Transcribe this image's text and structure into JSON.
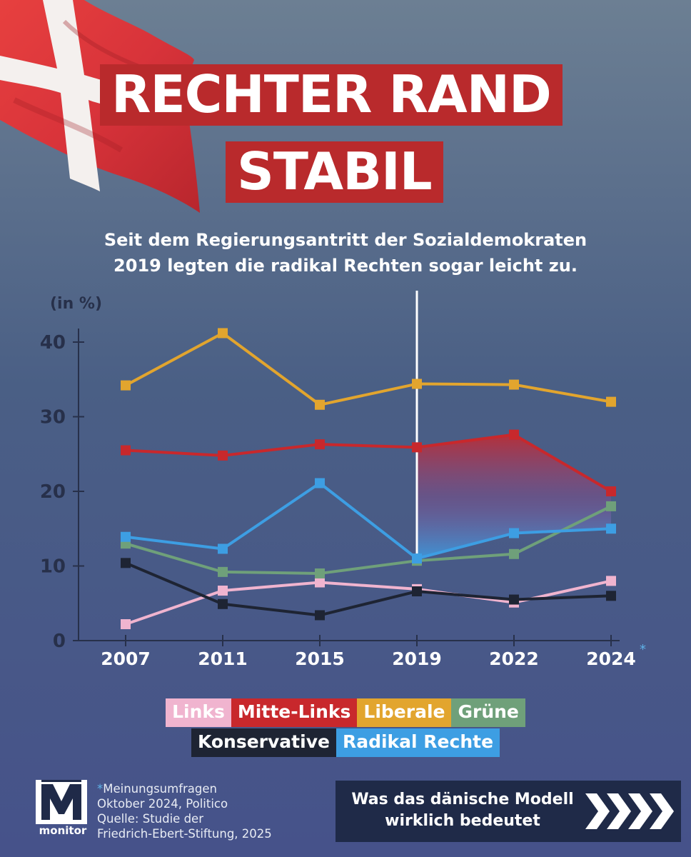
{
  "title": {
    "line1": "RECHTER RAND",
    "line2": "STABIL"
  },
  "subtitle": {
    "line1": "Seit dem Regierungsantritt der Sozialdemokraten",
    "line2": "2019 legten die radikal Rechten sogar leicht zu."
  },
  "colors": {
    "title_bg": "#b92a2c",
    "Links": "#f0b4cf",
    "Mitte-Links": "#c8282c",
    "Liberale": "#e2a52e",
    "Grüne": "#6fa07a",
    "Konservative": "#1e2433",
    "Radikal Rechte": "#3d9ee3"
  },
  "chart_data": {
    "type": "line",
    "ylabel": "(in %)",
    "ylim": [
      0,
      40
    ],
    "yticks": [
      0,
      10,
      20,
      30,
      40
    ],
    "x": [
      "2007",
      "2011",
      "2015",
      "2019",
      "2022",
      "2024"
    ],
    "x_note": "*",
    "marker": "2019",
    "highlight": "Gap between Mitte-Links and Radikal Rechte from 2019 onwards (red-to-blue gradient)",
    "series": [
      {
        "name": "Liberale",
        "values": [
          34.2,
          41.2,
          31.6,
          34.4,
          34.3,
          32.0
        ]
      },
      {
        "name": "Mitte-Links",
        "values": [
          25.5,
          24.8,
          26.3,
          25.9,
          27.6,
          20.0
        ]
      },
      {
        "name": "Radikal Rechte",
        "values": [
          13.9,
          12.3,
          21.1,
          11.0,
          14.4,
          15.0
        ]
      },
      {
        "name": "Grüne",
        "values": [
          13.0,
          9.2,
          9.0,
          10.7,
          11.6,
          18.0
        ]
      },
      {
        "name": "Konservative",
        "values": [
          10.4,
          4.9,
          3.4,
          6.6,
          5.5,
          6.0
        ]
      },
      {
        "name": "Links",
        "values": [
          2.2,
          6.7,
          7.8,
          6.9,
          5.1,
          8.0
        ]
      }
    ]
  },
  "legend": {
    "row1": [
      "Links",
      "Mitte-Links",
      "Liberale",
      "Grüne"
    ],
    "row2": [
      "Konservative",
      "Radikal Rechte"
    ]
  },
  "logo": {
    "letter": "M",
    "name": "monitor"
  },
  "footnote": {
    "asterisk": "*",
    "line1": "Meinungsumfragen",
    "line2": "Oktober 2024, Politico",
    "line3": "Quelle: Studie der",
    "line4": "Friedrich-Ebert-Stiftung, 2025"
  },
  "promo": {
    "line1": "Was das dänische Modell",
    "line2": "wirklich bedeutet"
  }
}
